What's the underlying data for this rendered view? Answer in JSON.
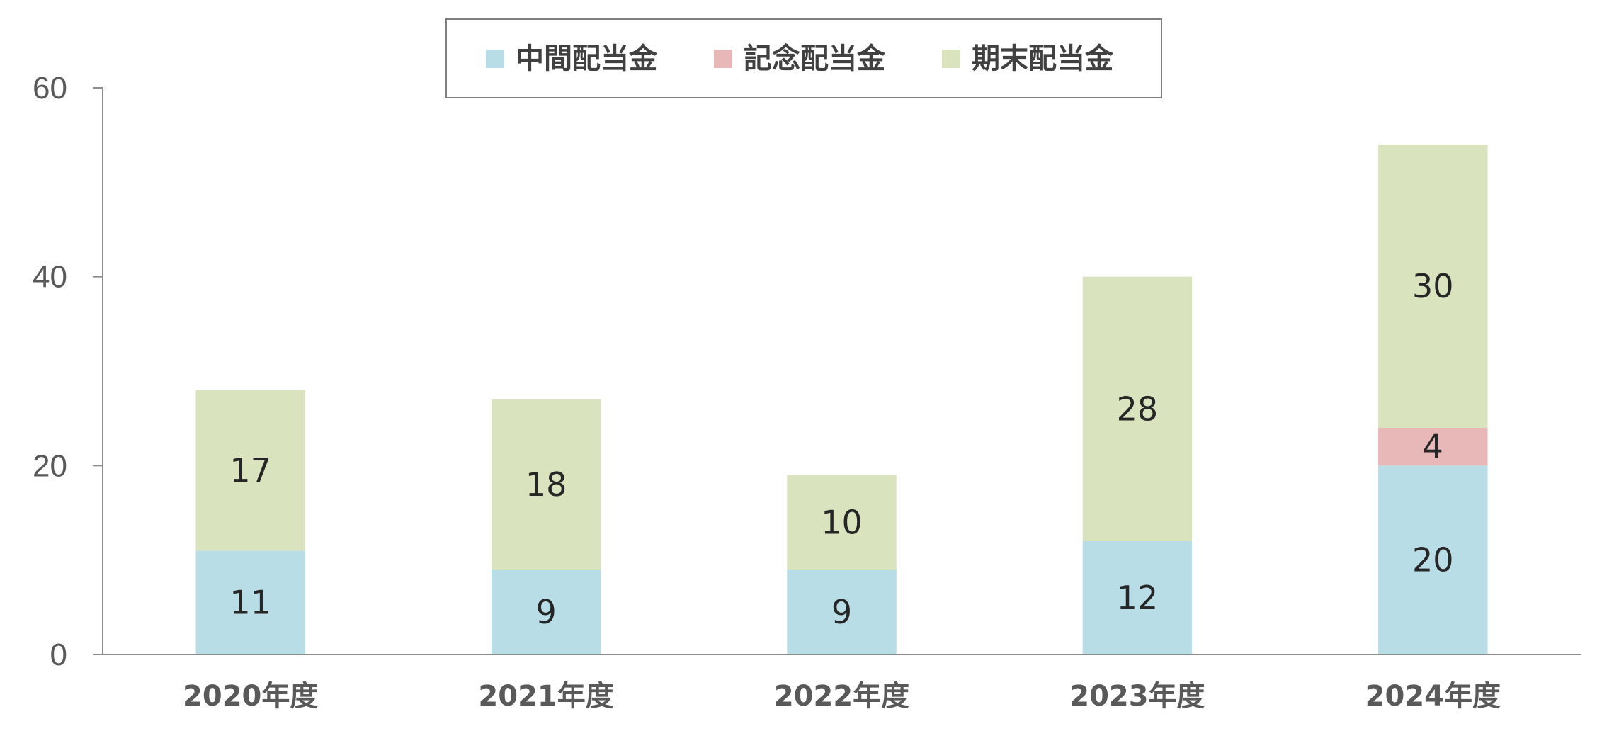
{
  "chart_data": {
    "type": "bar",
    "stacked": true,
    "categories": [
      "2020年度",
      "2021年度",
      "2022年度",
      "2023年度",
      "2024年度"
    ],
    "series": [
      {
        "name": "中間配当金",
        "color": "#b8dde6",
        "values": [
          11,
          9,
          9,
          12,
          20
        ]
      },
      {
        "name": "記念配当金",
        "color": "#e8b7b8",
        "values": [
          0,
          0,
          0,
          0,
          4
        ]
      },
      {
        "name": "期末配当金",
        "color": "#d9e4bf",
        "values": [
          17,
          18,
          10,
          28,
          30
        ]
      }
    ],
    "ylim": [
      0,
      60
    ],
    "yticks": [
      0,
      20,
      40,
      60
    ],
    "legend_position": "top",
    "grid": false,
    "data_labels": true
  }
}
